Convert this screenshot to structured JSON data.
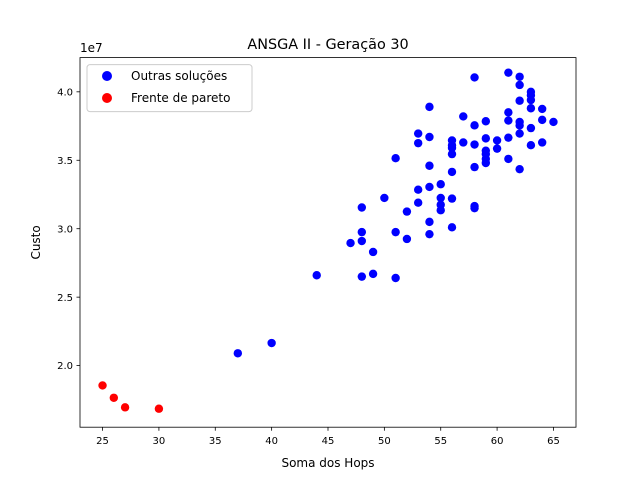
{
  "chart_data": {
    "type": "scatter",
    "title": "ANSGA II - Geração 30",
    "xlabel": "Soma dos Hops",
    "ylabel": "Custo",
    "y_offset_label": "1e7",
    "y_multiplier": 10000000,
    "xlim": [
      23,
      67
    ],
    "ylim": [
      15.5,
      42.5
    ],
    "x_ticks": [
      25,
      30,
      35,
      40,
      45,
      50,
      55,
      60,
      65
    ],
    "y_ticks": [
      2.0,
      2.5,
      3.0,
      3.5,
      4.0
    ],
    "y_tick_labels": [
      "2.0",
      "2.5",
      "3.0",
      "3.5",
      "4.0"
    ],
    "grid": false,
    "legend_position": "top-left",
    "series": [
      {
        "name": "Outras soluções",
        "color": "#0000ff",
        "points": [
          [
            37,
            20.9
          ],
          [
            40,
            21.65
          ],
          [
            44,
            26.6
          ],
          [
            47,
            28.95
          ],
          [
            48,
            31.55
          ],
          [
            48,
            29.75
          ],
          [
            48,
            29.1
          ],
          [
            48,
            26.5
          ],
          [
            49,
            28.3
          ],
          [
            49,
            26.7
          ],
          [
            50,
            32.25
          ],
          [
            51,
            35.15
          ],
          [
            51,
            29.75
          ],
          [
            51,
            26.4
          ],
          [
            52,
            31.25
          ],
          [
            52,
            29.25
          ],
          [
            53,
            36.95
          ],
          [
            53,
            36.25
          ],
          [
            53,
            32.85
          ],
          [
            53,
            31.9
          ],
          [
            54,
            38.9
          ],
          [
            54,
            36.7
          ],
          [
            54,
            34.6
          ],
          [
            54,
            33.05
          ],
          [
            54,
            30.5
          ],
          [
            54,
            29.6
          ],
          [
            55,
            33.25
          ],
          [
            55,
            32.25
          ],
          [
            55,
            31.75
          ],
          [
            55,
            31.35
          ],
          [
            56,
            36.45
          ],
          [
            56,
            36.1
          ],
          [
            56,
            35.9
          ],
          [
            56,
            35.45
          ],
          [
            56,
            34.15
          ],
          [
            56,
            32.2
          ],
          [
            56,
            30.1
          ],
          [
            57,
            38.2
          ],
          [
            57,
            36.3
          ],
          [
            58,
            41.05
          ],
          [
            58,
            37.55
          ],
          [
            58,
            36.15
          ],
          [
            58,
            34.5
          ],
          [
            58,
            31.65
          ],
          [
            58,
            31.5
          ],
          [
            59,
            37.85
          ],
          [
            59,
            36.6
          ],
          [
            59,
            35.7
          ],
          [
            59,
            35.45
          ],
          [
            59,
            35.1
          ],
          [
            59,
            34.8
          ],
          [
            60,
            36.45
          ],
          [
            60,
            35.85
          ],
          [
            61,
            41.4
          ],
          [
            61,
            38.5
          ],
          [
            61,
            37.9
          ],
          [
            61,
            36.65
          ],
          [
            61,
            35.1
          ],
          [
            62,
            41.1
          ],
          [
            62,
            40.5
          ],
          [
            62,
            39.35
          ],
          [
            62,
            37.8
          ],
          [
            62,
            37.55
          ],
          [
            62,
            36.95
          ],
          [
            62,
            34.35
          ],
          [
            63,
            40.0
          ],
          [
            63,
            39.75
          ],
          [
            63,
            39.4
          ],
          [
            63,
            38.8
          ],
          [
            63,
            37.35
          ],
          [
            63,
            36.1
          ],
          [
            64,
            38.75
          ],
          [
            64,
            37.95
          ],
          [
            64,
            36.3
          ],
          [
            65,
            37.8
          ]
        ]
      },
      {
        "name": "Frente de pareto",
        "color": "#ff0000",
        "points": [
          [
            25,
            18.55
          ],
          [
            26,
            17.65
          ],
          [
            27,
            16.95
          ],
          [
            30,
            16.85
          ]
        ]
      }
    ]
  }
}
